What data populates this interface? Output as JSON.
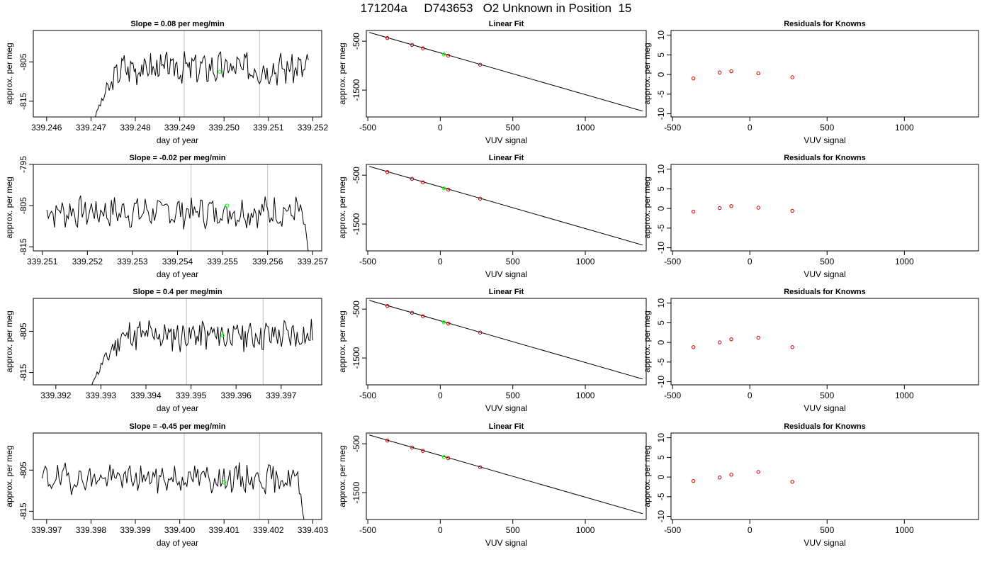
{
  "title": "171204a     D743653   O2 Unknown in Position  15",
  "colors": {
    "trace": "#000000",
    "marker_green": "#00ff00",
    "residual_red": "#cc0000",
    "divider": "#bebebe"
  },
  "chart_data": [
    {
      "type": "line",
      "row": 0,
      "col": 0,
      "title": "Slope =  0.08  per meg/min",
      "xlabel": "day of year",
      "ylabel": "approx. per meg",
      "xlim": [
        339.2457,
        339.2522
      ],
      "ylim": [
        -819,
        -797
      ],
      "xticks": [
        "339.246",
        "339.247",
        "339.248",
        "339.249",
        "339.250",
        "339.251",
        "339.252"
      ],
      "xtick_values": [
        339.246,
        339.247,
        339.248,
        339.249,
        339.25,
        339.251,
        339.252
      ],
      "yticks": [
        "-805",
        "-815"
      ],
      "ytick_values": [
        -805,
        -815
      ],
      "vlines": [
        339.2491,
        339.2508
      ],
      "series": [
        {
          "start": 339.2471,
          "end": 339.2519,
          "y0": -819,
          "mean": -806.5,
          "amp": 3.4,
          "seed": 3,
          "rise": 0.12
        }
      ],
      "marker": {
        "x": 339.2499,
        "y": -807.5
      }
    },
    {
      "type": "scatter",
      "row": 0,
      "col": 1,
      "title": "Linear Fit",
      "xlabel": "VUV signal",
      "ylabel": "approx. per meg",
      "xlim": [
        -510,
        1420
      ],
      "ylim": [
        -2050,
        -280
      ],
      "xticks": [
        "-500",
        "0",
        "500",
        "1000"
      ],
      "xtick_values": [
        -500,
        0,
        500,
        1000
      ],
      "yticks": [
        "-500",
        "-1500"
      ],
      "ytick_values": [
        -500,
        -1500
      ],
      "fit_line": {
        "x": [
          -490,
          1395
        ],
        "y": [
          -320,
          -1930
        ]
      },
      "points_red": [
        {
          "x": -365,
          "y": -435
        },
        {
          "x": -195,
          "y": -575
        },
        {
          "x": -120,
          "y": -645
        },
        {
          "x": 55,
          "y": -795
        },
        {
          "x": 275,
          "y": -980
        }
      ],
      "points_green": [
        {
          "x": 25,
          "y": -770
        }
      ]
    },
    {
      "type": "scatter",
      "row": 0,
      "col": 2,
      "title": "Residuals for Knowns",
      "xlabel": "VUV signal",
      "ylabel": "approx. per meg",
      "xlim": [
        -510,
        1480
      ],
      "ylim": [
        -10.8,
        11.2
      ],
      "xticks": [
        "-500",
        "0",
        "500",
        "1000"
      ],
      "xtick_values": [
        -500,
        0,
        500,
        1000
      ],
      "yticks": [
        "-10",
        "-5",
        "0",
        "5",
        "10"
      ],
      "ytick_values": [
        -10,
        -5,
        0,
        5,
        10
      ],
      "points_red": [
        {
          "x": -365,
          "y": -1.0
        },
        {
          "x": -195,
          "y": 0.5
        },
        {
          "x": -120,
          "y": 0.8
        },
        {
          "x": 55,
          "y": 0.3
        },
        {
          "x": 275,
          "y": -0.7
        }
      ]
    },
    {
      "type": "line",
      "row": 1,
      "col": 0,
      "title": "Slope =  -0.02  per meg/min",
      "xlabel": "day of year",
      "ylabel": "approx. per meg",
      "xlim": [
        339.2508,
        339.2572
      ],
      "ylim": [
        -816,
        -795
      ],
      "xticks": [
        "339.251",
        "339.252",
        "339.253",
        "339.254",
        "339.255",
        "339.256",
        "339.257"
      ],
      "xtick_values": [
        339.251,
        339.252,
        339.253,
        339.254,
        339.255,
        339.256,
        339.257
      ],
      "yticks": [
        "-795",
        "-805",
        "-815"
      ],
      "ytick_values": [
        -795,
        -805,
        -815
      ],
      "vlines": [
        339.2543,
        339.256
      ],
      "series": [
        {
          "start": 339.2511,
          "end": 339.2569,
          "y0": -806,
          "mean": -806.5,
          "amp": 3.2,
          "seed": 7,
          "tail": -816
        }
      ],
      "marker": {
        "x": 339.2551,
        "y": -805
      }
    },
    {
      "type": "scatter",
      "row": 1,
      "col": 1,
      "title": "Linear Fit",
      "xlabel": "VUV signal",
      "ylabel": "approx. per meg",
      "xlim": [
        -510,
        1420
      ],
      "ylim": [
        -2050,
        -280
      ],
      "xticks": [
        "-500",
        "0",
        "500",
        "1000"
      ],
      "xtick_values": [
        -500,
        0,
        500,
        1000
      ],
      "yticks": [
        "-500",
        "-1500"
      ],
      "ytick_values": [
        -500,
        -1500
      ],
      "fit_line": {
        "x": [
          -490,
          1395
        ],
        "y": [
          -320,
          -1930
        ]
      },
      "points_red": [
        {
          "x": -365,
          "y": -435
        },
        {
          "x": -195,
          "y": -575
        },
        {
          "x": -120,
          "y": -645
        },
        {
          "x": 55,
          "y": -795
        },
        {
          "x": 275,
          "y": -980
        }
      ],
      "points_green": [
        {
          "x": 25,
          "y": -770
        }
      ]
    },
    {
      "type": "scatter",
      "row": 1,
      "col": 2,
      "title": "Residuals for Knowns",
      "xlabel": "VUV signal",
      "ylabel": "approx. per meg",
      "xlim": [
        -510,
        1480
      ],
      "ylim": [
        -10.8,
        11.2
      ],
      "xticks": [
        "-500",
        "0",
        "500",
        "1000"
      ],
      "xtick_values": [
        -500,
        0,
        500,
        1000
      ],
      "yticks": [
        "-10",
        "-5",
        "0",
        "5",
        "10"
      ],
      "ytick_values": [
        -10,
        -5,
        0,
        5,
        10
      ],
      "points_red": [
        {
          "x": -365,
          "y": -0.8
        },
        {
          "x": -195,
          "y": 0.1
        },
        {
          "x": -120,
          "y": 0.6
        },
        {
          "x": 55,
          "y": 0.2
        },
        {
          "x": 275,
          "y": -0.6
        }
      ]
    },
    {
      "type": "line",
      "row": 2,
      "col": 0,
      "title": "Slope =  0.4  per meg/min",
      "xlabel": "day of year",
      "ylabel": "approx. per meg",
      "xlim": [
        339.3915,
        339.3979
      ],
      "ylim": [
        -818,
        -797
      ],
      "xticks": [
        "339.392",
        "339.393",
        "339.394",
        "339.395",
        "339.396",
        "339.397"
      ],
      "xtick_values": [
        339.392,
        339.393,
        339.394,
        339.395,
        339.396,
        339.397
      ],
      "vlines": [
        339.3949,
        339.3966
      ],
      "yticks": [
        "-805",
        "-815"
      ],
      "ytick_values": [
        -805,
        -815
      ],
      "series": [
        {
          "start": 339.3928,
          "end": 339.3977,
          "y0": -818,
          "mean": -806.0,
          "amp": 3.3,
          "seed": 11,
          "rise": 0.14
        }
      ],
      "marker": {
        "x": 339.3957,
        "y": -806
      }
    },
    {
      "type": "scatter",
      "row": 2,
      "col": 1,
      "title": "Linear Fit",
      "xlabel": "VUV signal",
      "ylabel": "approx. per meg",
      "xlim": [
        -510,
        1420
      ],
      "ylim": [
        -2050,
        -280
      ],
      "xticks": [
        "-500",
        "0",
        "500",
        "1000"
      ],
      "xtick_values": [
        -500,
        0,
        500,
        1000
      ],
      "yticks": [
        "-500",
        "-1500"
      ],
      "ytick_values": [
        -500,
        -1500
      ],
      "fit_line": {
        "x": [
          -490,
          1395
        ],
        "y": [
          -320,
          -1930
        ]
      },
      "points_red": [
        {
          "x": -365,
          "y": -435
        },
        {
          "x": -195,
          "y": -575
        },
        {
          "x": -120,
          "y": -645
        },
        {
          "x": 55,
          "y": -795
        },
        {
          "x": 275,
          "y": -980
        }
      ],
      "points_green": [
        {
          "x": 25,
          "y": -770
        }
      ]
    },
    {
      "type": "scatter",
      "row": 2,
      "col": 2,
      "title": "Residuals for Knowns",
      "xlabel": "VUV signal",
      "ylabel": "approx. per meg",
      "xlim": [
        -510,
        1480
      ],
      "ylim": [
        -10.8,
        11.2
      ],
      "xticks": [
        "-500",
        "0",
        "500",
        "1000"
      ],
      "xtick_values": [
        -500,
        0,
        500,
        1000
      ],
      "yticks": [
        "-10",
        "-5",
        "0",
        "5",
        "10"
      ],
      "ytick_values": [
        -10,
        -5,
        0,
        5,
        10
      ],
      "points_red": [
        {
          "x": -365,
          "y": -1.2
        },
        {
          "x": -195,
          "y": 0.0
        },
        {
          "x": -120,
          "y": 0.8
        },
        {
          "x": 55,
          "y": 1.2
        },
        {
          "x": 275,
          "y": -1.2
        }
      ]
    },
    {
      "type": "line",
      "row": 3,
      "col": 0,
      "title": "Slope =  -0.45  per meg/min",
      "xlabel": "day of year",
      "ylabel": "approx. per meg",
      "xlim": [
        339.3967,
        339.4032
      ],
      "ylim": [
        -817,
        -796
      ],
      "xticks": [
        "339.397",
        "339.398",
        "339.399",
        "339.400",
        "339.401",
        "339.402",
        "339.403"
      ],
      "xtick_values": [
        339.397,
        339.398,
        339.399,
        339.4,
        339.401,
        339.402,
        339.403
      ],
      "vlines": [
        339.4001,
        339.4018
      ],
      "yticks": [
        "-805",
        "-815"
      ],
      "ytick_values": [
        -805,
        -815
      ],
      "series": [
        {
          "start": 339.3969,
          "end": 339.4028,
          "y0": -807,
          "mean": -807.0,
          "amp": 3.0,
          "seed": 19,
          "tail": -817
        }
      ],
      "marker": {
        "x": 339.401,
        "y": -808
      }
    },
    {
      "type": "scatter",
      "row": 3,
      "col": 1,
      "title": "Linear Fit",
      "xlabel": "VUV signal",
      "ylabel": "approx. per meg",
      "xlim": [
        -510,
        1420
      ],
      "ylim": [
        -2050,
        -280
      ],
      "xticks": [
        "-500",
        "0",
        "500",
        "1000"
      ],
      "xtick_values": [
        -500,
        0,
        500,
        1000
      ],
      "yticks": [
        "-500",
        "-1500"
      ],
      "ytick_values": [
        -500,
        -1500
      ],
      "fit_line": {
        "x": [
          -490,
          1395
        ],
        "y": [
          -320,
          -1930
        ]
      },
      "points_red": [
        {
          "x": -365,
          "y": -435
        },
        {
          "x": -195,
          "y": -575
        },
        {
          "x": -120,
          "y": -645
        },
        {
          "x": 55,
          "y": -795
        },
        {
          "x": 275,
          "y": -980
        }
      ],
      "points_green": [
        {
          "x": 25,
          "y": -770
        }
      ]
    },
    {
      "type": "scatter",
      "row": 3,
      "col": 2,
      "title": "Residuals for Knowns",
      "xlabel": "VUV signal",
      "ylabel": "approx. per meg",
      "xlim": [
        -510,
        1480
      ],
      "ylim": [
        -10.8,
        11.2
      ],
      "xticks": [
        "-500",
        "0",
        "500",
        "1000"
      ],
      "xtick_values": [
        -500,
        0,
        500,
        1000
      ],
      "yticks": [
        "-10",
        "-5",
        "0",
        "5",
        "10"
      ],
      "ytick_values": [
        -10,
        -5,
        0,
        5,
        10
      ],
      "points_red": [
        {
          "x": -365,
          "y": -1.0
        },
        {
          "x": -195,
          "y": -0.1
        },
        {
          "x": -120,
          "y": 0.6
        },
        {
          "x": 55,
          "y": 1.3
        },
        {
          "x": 275,
          "y": -1.2
        }
      ]
    }
  ]
}
